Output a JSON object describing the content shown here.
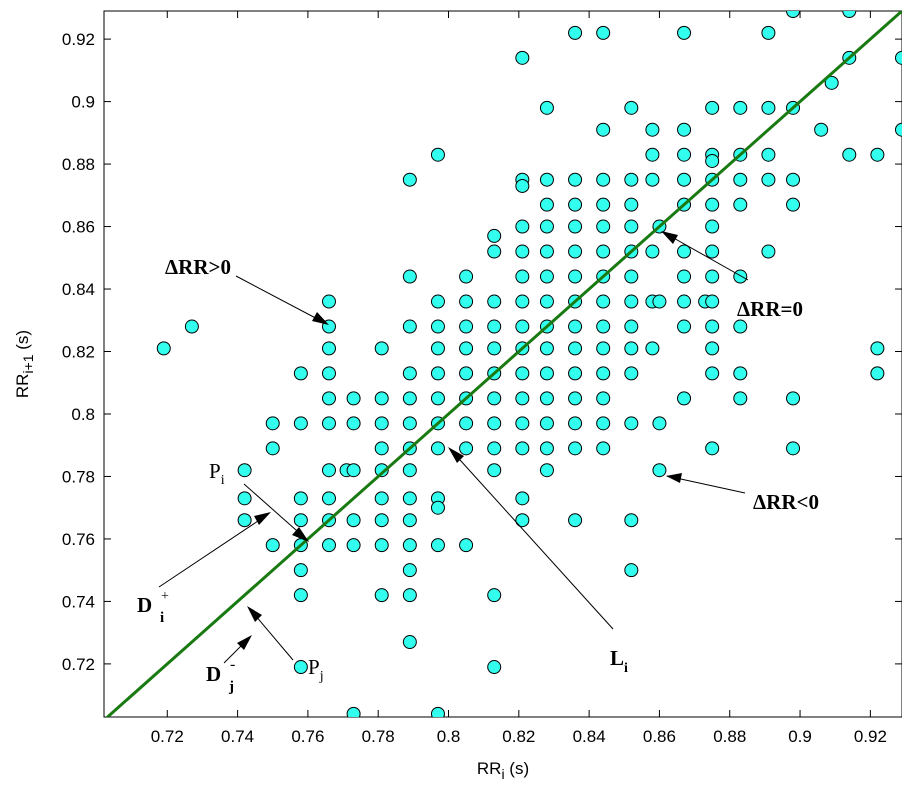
{
  "chart_data": {
    "type": "scatter",
    "xlabel": "RR",
    "xlabel_sub": "i",
    "xlabel_unit": " (s)",
    "ylabel": "RR",
    "ylabel_sub": "i+1",
    "ylabel_unit": " (s)",
    "xlim": [
      0.702,
      0.929
    ],
    "ylim": [
      0.703,
      0.929
    ],
    "xticks": [
      "0.72",
      "0.74",
      "0.76",
      "0.78",
      "0.8",
      "0.82",
      "0.84",
      "0.86",
      "0.88",
      "0.9",
      "0.92"
    ],
    "yticks": [
      "0.72",
      "0.74",
      "0.76",
      "0.78",
      "0.8",
      "0.82",
      "0.84",
      "0.86",
      "0.88",
      "0.9",
      "0.92"
    ],
    "identity_line": {
      "from": [
        0.702,
        0.702
      ],
      "to": [
        0.929,
        0.929
      ],
      "color": "#1a7a12"
    },
    "marker_color": "#33ffee",
    "grid": false,
    "points": [
      [
        0.719,
        0.821
      ],
      [
        0.727,
        0.828
      ],
      [
        0.742,
        0.782
      ],
      [
        0.742,
        0.773
      ],
      [
        0.742,
        0.766
      ],
      [
        0.75,
        0.797
      ],
      [
        0.75,
        0.789
      ],
      [
        0.75,
        0.758
      ],
      [
        0.758,
        0.813
      ],
      [
        0.758,
        0.797
      ],
      [
        0.758,
        0.773
      ],
      [
        0.758,
        0.766
      ],
      [
        0.758,
        0.758
      ],
      [
        0.758,
        0.75
      ],
      [
        0.758,
        0.742
      ],
      [
        0.758,
        0.719
      ],
      [
        0.766,
        0.836
      ],
      [
        0.766,
        0.828
      ],
      [
        0.766,
        0.821
      ],
      [
        0.766,
        0.813
      ],
      [
        0.766,
        0.805
      ],
      [
        0.766,
        0.797
      ],
      [
        0.766,
        0.782
      ],
      [
        0.766,
        0.773
      ],
      [
        0.766,
        0.766
      ],
      [
        0.766,
        0.758
      ],
      [
        0.771,
        0.782
      ],
      [
        0.773,
        0.805
      ],
      [
        0.773,
        0.797
      ],
      [
        0.773,
        0.782
      ],
      [
        0.773,
        0.766
      ],
      [
        0.773,
        0.758
      ],
      [
        0.773,
        0.704
      ],
      [
        0.781,
        0.821
      ],
      [
        0.781,
        0.805
      ],
      [
        0.781,
        0.797
      ],
      [
        0.781,
        0.789
      ],
      [
        0.781,
        0.782
      ],
      [
        0.781,
        0.773
      ],
      [
        0.781,
        0.766
      ],
      [
        0.781,
        0.758
      ],
      [
        0.781,
        0.742
      ],
      [
        0.789,
        0.875
      ],
      [
        0.789,
        0.844
      ],
      [
        0.789,
        0.828
      ],
      [
        0.789,
        0.813
      ],
      [
        0.789,
        0.805
      ],
      [
        0.789,
        0.797
      ],
      [
        0.789,
        0.789
      ],
      [
        0.789,
        0.782
      ],
      [
        0.789,
        0.773
      ],
      [
        0.789,
        0.766
      ],
      [
        0.789,
        0.758
      ],
      [
        0.789,
        0.75
      ],
      [
        0.789,
        0.742
      ],
      [
        0.789,
        0.727
      ],
      [
        0.797,
        0.883
      ],
      [
        0.797,
        0.836
      ],
      [
        0.797,
        0.828
      ],
      [
        0.797,
        0.821
      ],
      [
        0.797,
        0.813
      ],
      [
        0.797,
        0.805
      ],
      [
        0.797,
        0.797
      ],
      [
        0.797,
        0.789
      ],
      [
        0.797,
        0.773
      ],
      [
        0.797,
        0.77
      ],
      [
        0.797,
        0.758
      ],
      [
        0.797,
        0.704
      ],
      [
        0.805,
        0.844
      ],
      [
        0.805,
        0.836
      ],
      [
        0.805,
        0.828
      ],
      [
        0.805,
        0.821
      ],
      [
        0.805,
        0.813
      ],
      [
        0.805,
        0.805
      ],
      [
        0.805,
        0.797
      ],
      [
        0.805,
        0.789
      ],
      [
        0.805,
        0.758
      ],
      [
        0.813,
        0.857
      ],
      [
        0.813,
        0.852
      ],
      [
        0.813,
        0.836
      ],
      [
        0.813,
        0.828
      ],
      [
        0.813,
        0.821
      ],
      [
        0.813,
        0.813
      ],
      [
        0.813,
        0.805
      ],
      [
        0.813,
        0.797
      ],
      [
        0.813,
        0.789
      ],
      [
        0.813,
        0.782
      ],
      [
        0.813,
        0.742
      ],
      [
        0.813,
        0.719
      ],
      [
        0.821,
        0.914
      ],
      [
        0.821,
        0.875
      ],
      [
        0.821,
        0.873
      ],
      [
        0.821,
        0.86
      ],
      [
        0.821,
        0.852
      ],
      [
        0.821,
        0.844
      ],
      [
        0.821,
        0.836
      ],
      [
        0.821,
        0.828
      ],
      [
        0.821,
        0.821
      ],
      [
        0.821,
        0.813
      ],
      [
        0.821,
        0.805
      ],
      [
        0.821,
        0.797
      ],
      [
        0.821,
        0.789
      ],
      [
        0.821,
        0.773
      ],
      [
        0.821,
        0.766
      ],
      [
        0.828,
        0.898
      ],
      [
        0.828,
        0.875
      ],
      [
        0.828,
        0.867
      ],
      [
        0.828,
        0.86
      ],
      [
        0.828,
        0.852
      ],
      [
        0.828,
        0.844
      ],
      [
        0.828,
        0.836
      ],
      [
        0.828,
        0.828
      ],
      [
        0.828,
        0.821
      ],
      [
        0.828,
        0.813
      ],
      [
        0.828,
        0.805
      ],
      [
        0.828,
        0.797
      ],
      [
        0.828,
        0.789
      ],
      [
        0.828,
        0.782
      ],
      [
        0.836,
        0.922
      ],
      [
        0.836,
        0.875
      ],
      [
        0.836,
        0.867
      ],
      [
        0.836,
        0.86
      ],
      [
        0.836,
        0.852
      ],
      [
        0.836,
        0.844
      ],
      [
        0.836,
        0.836
      ],
      [
        0.836,
        0.828
      ],
      [
        0.836,
        0.821
      ],
      [
        0.836,
        0.813
      ],
      [
        0.836,
        0.805
      ],
      [
        0.836,
        0.797
      ],
      [
        0.836,
        0.789
      ],
      [
        0.836,
        0.766
      ],
      [
        0.844,
        0.922
      ],
      [
        0.844,
        0.891
      ],
      [
        0.844,
        0.875
      ],
      [
        0.844,
        0.867
      ],
      [
        0.844,
        0.86
      ],
      [
        0.844,
        0.852
      ],
      [
        0.844,
        0.844
      ],
      [
        0.844,
        0.836
      ],
      [
        0.844,
        0.828
      ],
      [
        0.844,
        0.821
      ],
      [
        0.844,
        0.813
      ],
      [
        0.844,
        0.805
      ],
      [
        0.844,
        0.797
      ],
      [
        0.844,
        0.789
      ],
      [
        0.852,
        0.898
      ],
      [
        0.852,
        0.875
      ],
      [
        0.852,
        0.867
      ],
      [
        0.852,
        0.86
      ],
      [
        0.852,
        0.852
      ],
      [
        0.852,
        0.844
      ],
      [
        0.852,
        0.836
      ],
      [
        0.852,
        0.828
      ],
      [
        0.852,
        0.821
      ],
      [
        0.852,
        0.813
      ],
      [
        0.852,
        0.797
      ],
      [
        0.852,
        0.766
      ],
      [
        0.852,
        0.75
      ],
      [
        0.858,
        0.891
      ],
      [
        0.858,
        0.883
      ],
      [
        0.858,
        0.875
      ],
      [
        0.858,
        0.852
      ],
      [
        0.858,
        0.836
      ],
      [
        0.858,
        0.821
      ],
      [
        0.86,
        0.86
      ],
      [
        0.86,
        0.836
      ],
      [
        0.86,
        0.797
      ],
      [
        0.86,
        0.782
      ],
      [
        0.867,
        0.922
      ],
      [
        0.867,
        0.891
      ],
      [
        0.867,
        0.883
      ],
      [
        0.867,
        0.875
      ],
      [
        0.867,
        0.867
      ],
      [
        0.867,
        0.852
      ],
      [
        0.867,
        0.844
      ],
      [
        0.867,
        0.836
      ],
      [
        0.867,
        0.828
      ],
      [
        0.867,
        0.805
      ],
      [
        0.873,
        0.836
      ],
      [
        0.875,
        0.898
      ],
      [
        0.875,
        0.883
      ],
      [
        0.875,
        0.881
      ],
      [
        0.875,
        0.875
      ],
      [
        0.875,
        0.867
      ],
      [
        0.875,
        0.86
      ],
      [
        0.875,
        0.852
      ],
      [
        0.875,
        0.844
      ],
      [
        0.875,
        0.836
      ],
      [
        0.875,
        0.828
      ],
      [
        0.875,
        0.821
      ],
      [
        0.875,
        0.813
      ],
      [
        0.875,
        0.789
      ],
      [
        0.883,
        0.898
      ],
      [
        0.883,
        0.883
      ],
      [
        0.883,
        0.875
      ],
      [
        0.883,
        0.867
      ],
      [
        0.883,
        0.844
      ],
      [
        0.883,
        0.828
      ],
      [
        0.883,
        0.813
      ],
      [
        0.883,
        0.805
      ],
      [
        0.891,
        0.922
      ],
      [
        0.891,
        0.898
      ],
      [
        0.891,
        0.883
      ],
      [
        0.891,
        0.875
      ],
      [
        0.891,
        0.852
      ],
      [
        0.898,
        0.929
      ],
      [
        0.898,
        0.898
      ],
      [
        0.898,
        0.875
      ],
      [
        0.898,
        0.867
      ],
      [
        0.898,
        0.805
      ],
      [
        0.898,
        0.789
      ],
      [
        0.906,
        0.891
      ],
      [
        0.909,
        0.906
      ],
      [
        0.914,
        0.929
      ],
      [
        0.914,
        0.914
      ],
      [
        0.914,
        0.883
      ],
      [
        0.922,
        0.883
      ],
      [
        0.922,
        0.821
      ],
      [
        0.922,
        0.813
      ],
      [
        0.929,
        0.914
      ],
      [
        0.929,
        0.891
      ]
    ]
  },
  "annotations": {
    "drr_pos": "ΔRR>0",
    "drr_zero": "ΔRR=0",
    "drr_neg": "ΔRR<0",
    "pi_main": "P",
    "pi_sub": "i",
    "pj_main": "P",
    "pj_sub": "j",
    "li_main": "L",
    "li_sub": "i",
    "di_main": "D",
    "di_sub": "i",
    "di_sup": "+",
    "dj_main": "D",
    "dj_sub": "j",
    "dj_sup": "-"
  }
}
